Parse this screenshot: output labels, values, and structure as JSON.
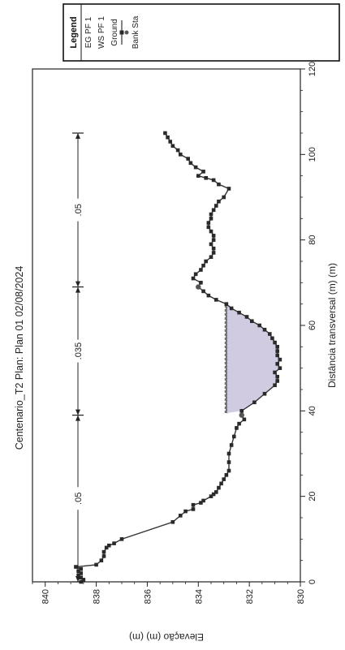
{
  "chart_data": {
    "type": "line",
    "title": "Centenario_T2      Plan: Plan 01    02/08/2024",
    "xlabel": "Distância transversal (m) (m)",
    "ylabel": "Elevação (m) (m)",
    "xlim": [
      0,
      120
    ],
    "ylim": [
      830,
      840.5
    ],
    "x_ticks": [
      "0",
      "20",
      "40",
      "60",
      "80",
      "100",
      "120"
    ],
    "y_ticks": [
      "830",
      "832",
      "834",
      "836",
      "838",
      "840"
    ],
    "grid": false,
    "legend_position": "top-right",
    "legend": {
      "title": "Legend",
      "entries": [
        "EG PF 1",
        "WS PF 1",
        "Ground",
        "Bank Sta"
      ]
    },
    "mannings_n": {
      "segments": [
        {
          "label": ".05",
          "x_start": 0,
          "x_end": 39
        },
        {
          "label": ".035",
          "x_start": 39,
          "x_end": 69
        },
        {
          "label": ".05",
          "x_start": 69,
          "x_end": 105
        }
      ]
    },
    "series": [
      {
        "name": "Ground",
        "points": [
          [
            0,
            838.6
          ],
          [
            0.5,
            838.5
          ],
          [
            1,
            838.6
          ],
          [
            1.5,
            838.7
          ],
          [
            2,
            838.6
          ],
          [
            2.5,
            838.7
          ],
          [
            3,
            838.6
          ],
          [
            3.5,
            838.8
          ],
          [
            4,
            838.0
          ],
          [
            5,
            837.8
          ],
          [
            6,
            837.7
          ],
          [
            7,
            837.7
          ],
          [
            8,
            837.6
          ],
          [
            8.5,
            837.5
          ],
          [
            9,
            837.3
          ],
          [
            10,
            837.0
          ],
          [
            14,
            835.0
          ],
          [
            15.5,
            834.7
          ],
          [
            16.5,
            834.5
          ],
          [
            17,
            834.2
          ],
          [
            18,
            834.2
          ],
          [
            18.5,
            833.9
          ],
          [
            19,
            833.8
          ],
          [
            20,
            833.5
          ],
          [
            20.5,
            833.4
          ],
          [
            21,
            833.3
          ],
          [
            22,
            833.2
          ],
          [
            23,
            833.1
          ],
          [
            24,
            833.0
          ],
          [
            25,
            832.9
          ],
          [
            26,
            832.8
          ],
          [
            28,
            832.8
          ],
          [
            30,
            832.8
          ],
          [
            32,
            832.7
          ],
          [
            34,
            832.6
          ],
          [
            36,
            832.5
          ],
          [
            37,
            832.4
          ],
          [
            38,
            832.2
          ],
          [
            39,
            832.3
          ],
          [
            40,
            832.3
          ],
          [
            42,
            831.8
          ],
          [
            44,
            831.4
          ],
          [
            46,
            831.0
          ],
          [
            47,
            830.9
          ],
          [
            48,
            830.9
          ],
          [
            49,
            831.0
          ],
          [
            50,
            830.8
          ],
          [
            51,
            830.9
          ],
          [
            52,
            830.8
          ],
          [
            53,
            830.9
          ],
          [
            54,
            830.9
          ],
          [
            55,
            830.9
          ],
          [
            56,
            831.0
          ],
          [
            57,
            831.1
          ],
          [
            58,
            831.2
          ],
          [
            59,
            831.4
          ],
          [
            60,
            831.6
          ],
          [
            61,
            831.9
          ],
          [
            62,
            832.1
          ],
          [
            63,
            832.4
          ],
          [
            64,
            832.7
          ],
          [
            65,
            832.9
          ],
          [
            66,
            833.3
          ],
          [
            67,
            833.6
          ],
          [
            68,
            833.8
          ],
          [
            69,
            834.0
          ],
          [
            70,
            833.9
          ],
          [
            71,
            834.2
          ],
          [
            72,
            834.1
          ],
          [
            73,
            833.9
          ],
          [
            74,
            833.8
          ],
          [
            75,
            833.7
          ],
          [
            76,
            833.5
          ],
          [
            77,
            833.4
          ],
          [
            78,
            833.4
          ],
          [
            79,
            833.5
          ],
          [
            80,
            833.4
          ],
          [
            81,
            833.4
          ],
          [
            82,
            833.5
          ],
          [
            83,
            833.6
          ],
          [
            84,
            833.6
          ],
          [
            85,
            833.5
          ],
          [
            86,
            833.5
          ],
          [
            87,
            833.4
          ],
          [
            88,
            833.3
          ],
          [
            89,
            833.2
          ],
          [
            90,
            833.0
          ],
          [
            92,
            832.8
          ],
          [
            93,
            833.2
          ],
          [
            94,
            833.4
          ],
          [
            94.5,
            833.7
          ],
          [
            95,
            834.0
          ],
          [
            96,
            833.8
          ],
          [
            97,
            834.1
          ],
          [
            98,
            834.3
          ],
          [
            99,
            834.4
          ],
          [
            100,
            834.7
          ],
          [
            101,
            834.8
          ],
          [
            102,
            835.0
          ],
          [
            103,
            835.1
          ],
          [
            104,
            835.2
          ],
          [
            105,
            835.3
          ]
        ]
      },
      {
        "name": "WS PF 1",
        "points": [
          [
            39.5,
            832.9
          ],
          [
            65,
            832.9
          ]
        ]
      },
      {
        "name": "EG PF 1",
        "points": [
          [
            39.5,
            832.95
          ],
          [
            65,
            832.95
          ]
        ]
      },
      {
        "name": "Bank Sta",
        "points": [
          [
            39,
            832.3
          ],
          [
            69,
            834.0
          ]
        ]
      }
    ]
  }
}
